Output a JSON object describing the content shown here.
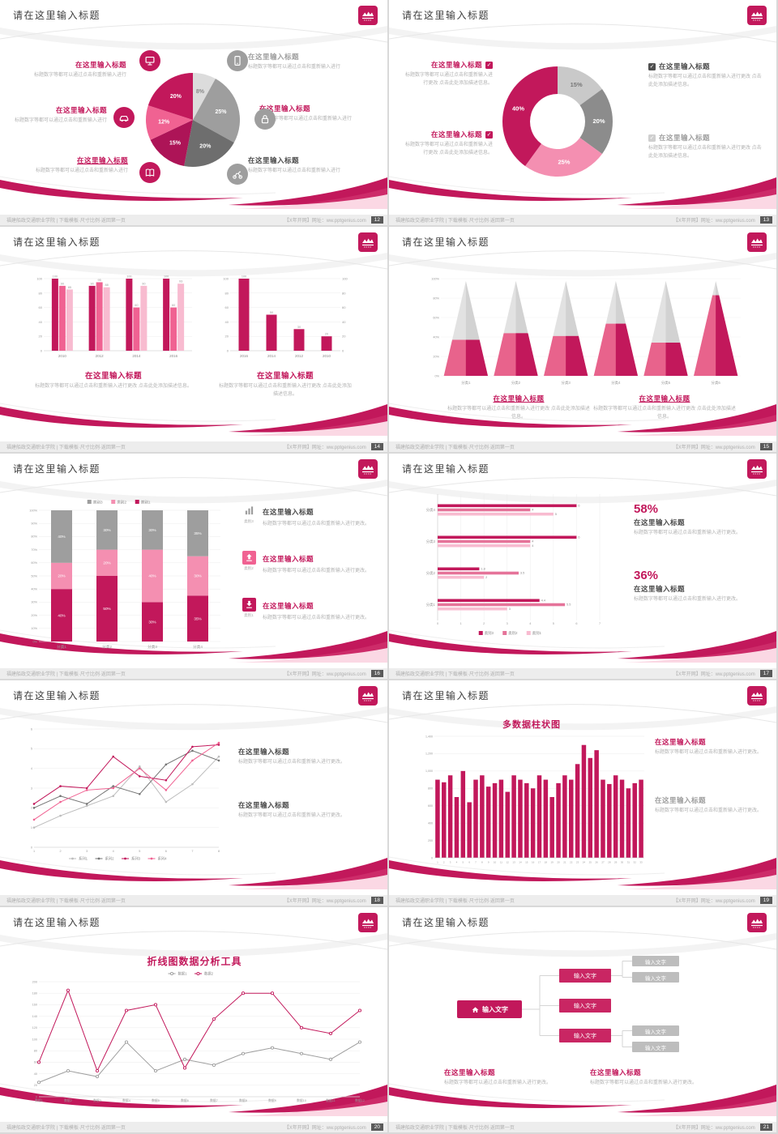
{
  "common": {
    "slide_title": "请在这里输入标题",
    "ph_title": "在这里输入标题",
    "body_short": "标题数字等都可以通过点击和重新输入进行",
    "body_med": "标题数字等都可以通过点击和重新输入进行更改。",
    "body_long": "标题数字等都可以通过点击和重新输入进行更改 点击此处添加描述信息。",
    "footer_left": "福建船政交通职业学院 | 下载模板·尺寸比例·返回第一页",
    "footer_right": "【X年开网】网址：ww.pptgenius.com",
    "colors": {
      "crimson": "#C2185B",
      "crimson_dark": "#AD1457",
      "pink": "#F06292",
      "pink_light": "#F8BBD0",
      "gray_dark": "#757575",
      "gray": "#9E9E9E",
      "gray_light": "#DADADA"
    }
  },
  "slides": [
    {
      "page": "12",
      "icons": [
        "monitor-icon",
        "smartphone-icon",
        "car-icon",
        "lock-icon",
        "book-icon",
        "scooter-icon"
      ],
      "pie": {
        "type": "pie",
        "slices": [
          {
            "label": "8%",
            "value": 8,
            "color": "#DCDCDC",
            "text": "#8a8a8a"
          },
          {
            "label": "25%",
            "value": 25,
            "color": "#9E9E9E"
          },
          {
            "label": "20%",
            "value": 20,
            "color": "#6E6E6E"
          },
          {
            "label": "15%",
            "value": 15,
            "color": "#AD1457"
          },
          {
            "label": "12%",
            "value": 12,
            "color": "#F06292"
          },
          {
            "label": "20%",
            "value": 20,
            "color": "#C2185B"
          }
        ]
      }
    },
    {
      "page": "13",
      "donut": {
        "type": "pie",
        "slices": [
          {
            "label": "15%",
            "value": 15,
            "color": "#C9C9C9",
            "text": "#777777"
          },
          {
            "label": "20%",
            "value": 20,
            "color": "#8C8C8C"
          },
          {
            "label": "25%",
            "value": 25,
            "color": "#F48FB1"
          },
          {
            "label": "40%",
            "value": 40,
            "color": "#C2185B"
          }
        ]
      }
    },
    {
      "page": "14",
      "chart_left": {
        "type": "bar",
        "groups": [
          {
            "label": "2010",
            "values": [
              100,
              90,
              85
            ]
          },
          {
            "label": "2012",
            "values": [
              90,
              95,
              88
            ]
          },
          {
            "label": "2014",
            "values": [
              100,
              60,
              90
            ]
          },
          {
            "label": "2016",
            "values": [
              100,
              60,
              93
            ]
          }
        ],
        "colors": [
          "#C2185B",
          "#F06292",
          "#F8BBD0"
        ],
        "ymax": 100,
        "yticks": [
          "0",
          "20",
          "40",
          "60",
          "80",
          "100"
        ],
        "axis": "left"
      },
      "chart_right": {
        "type": "bar",
        "groups": [
          {
            "label": "2016",
            "values": [
              100
            ]
          },
          {
            "label": "2014",
            "values": [
              50
            ]
          },
          {
            "label": "2012",
            "values": [
              30
            ]
          },
          {
            "label": "2010",
            "values": [
              20
            ]
          }
        ],
        "colors": [
          "#C2185B"
        ],
        "bw": 13,
        "ymax": 100,
        "yticks": [
          "0",
          "20",
          "40",
          "60",
          "80",
          "100"
        ],
        "axis": "both"
      }
    },
    {
      "page": "15",
      "pyramid": {
        "type": "pyramid",
        "cats": [
          "分类1",
          "分类2",
          "分类3",
          "分类4",
          "分类5",
          "分类6"
        ],
        "pct": [
          38,
          45,
          42,
          55,
          35,
          85
        ],
        "yticks": [
          "0%",
          "20%",
          "40%",
          "60%",
          "80%",
          "100%"
        ]
      }
    },
    {
      "page": "16",
      "stacked": {
        "type": "stacked-bar",
        "legend": [
          {
            "label": "类别3",
            "color": "#9E9E9E"
          },
          {
            "label": "类别2",
            "color": "#F48FB1"
          },
          {
            "label": "类别1",
            "color": "#C2185B"
          }
        ],
        "series_colors": [
          "#C2185B",
          "#F48FB1",
          "#9E9E9E"
        ],
        "cats": [
          "分类1",
          "分类2",
          "分类3",
          "分类4"
        ],
        "rows": [
          [
            40,
            20,
            40
          ],
          [
            50,
            20,
            30
          ],
          [
            30,
            40,
            30
          ],
          [
            35,
            30,
            35
          ]
        ],
        "ymax": 100,
        "yticks": [
          "0%",
          "10%",
          "20%",
          "30%",
          "40%",
          "50%",
          "60%",
          "70%",
          "80%",
          "90%",
          "100%"
        ]
      },
      "list": [
        {
          "icon": "bar-chart-icon",
          "caption": "类别3"
        },
        {
          "icon": "upload-icon",
          "caption": "类别2"
        },
        {
          "icon": "download-icon",
          "caption": "类别1"
        }
      ]
    },
    {
      "page": "17",
      "hbar": {
        "type": "horizontal-bar",
        "groups": [
          {
            "label": "分类4",
            "values": [
              6,
              4,
              5
            ]
          },
          {
            "label": "分类3",
            "values": [
              6,
              4,
              4
            ]
          },
          {
            "label": "分类2",
            "values": [
              1.8,
              3.5,
              2
            ]
          },
          {
            "label": "分类1",
            "values": [
              4.4,
              5.5,
              3
            ]
          }
        ],
        "colors": [
          "#C2185B",
          "#E57399",
          "#F8BBD0"
        ],
        "xmax": 7,
        "xticks": [
          "0",
          "1",
          "2",
          "3",
          "4",
          "5",
          "6",
          "7"
        ],
        "legend": [
          {
            "label": "类别3",
            "color": "#C2185B"
          },
          {
            "label": "类别2",
            "color": "#E57399"
          },
          {
            "label": "类别1",
            "color": "#F8BBD0"
          }
        ]
      },
      "stats": [
        {
          "pct": "58%"
        },
        {
          "pct": "36%"
        }
      ]
    },
    {
      "page": "18",
      "line": {
        "type": "line",
        "x": [
          "1",
          "2",
          "3",
          "4",
          "5",
          "6",
          "7",
          "8"
        ],
        "ymax": 6,
        "yticks": [
          "0",
          "1",
          "2",
          "3",
          "4",
          "5",
          "6"
        ],
        "marker": "filled",
        "legend_pos": "bottom",
        "series": [
          {
            "name": "系列1",
            "color": "#BDBDBD",
            "values": [
              1,
              1.6,
              2.1,
              2.6,
              4.1,
              2.3,
              3.2,
              4.6
            ]
          },
          {
            "name": "系列2",
            "color": "#757575",
            "values": [
              2,
              2.6,
              2.2,
              3.1,
              2.7,
              4.2,
              4.9,
              4.4
            ]
          },
          {
            "name": "系列3",
            "color": "#C2185B",
            "values": [
              2.2,
              3.1,
              3,
              4.6,
              3.6,
              3.4,
              5.1,
              5.2
            ]
          },
          {
            "name": "系列4",
            "color": "#F06292",
            "values": [
              1.4,
              2.3,
              2.9,
              3,
              4,
              2.9,
              4.4,
              5.3
            ]
          }
        ]
      }
    },
    {
      "page": "19",
      "title": "多数据柱状图",
      "columns": {
        "type": "bar",
        "values": [
          900,
          870,
          950,
          700,
          1000,
          640,
          900,
          950,
          820,
          860,
          900,
          760,
          950,
          900,
          860,
          800,
          950,
          900,
          700,
          860,
          950,
          900,
          1080,
          1300,
          1150,
          1240,
          900,
          850,
          950,
          900,
          800,
          860,
          900
        ],
        "ymax": 1400,
        "yticks": [
          "0",
          "200",
          "400",
          "600",
          "800",
          "1,000",
          "1,200",
          "1,400"
        ],
        "xlabels": [
          "1",
          "2",
          "3",
          "4",
          "5",
          "6",
          "7",
          "8",
          "9",
          "10",
          "11",
          "12",
          "13",
          "14",
          "15",
          "16",
          "17",
          "18",
          "19",
          "20",
          "21",
          "22",
          "23",
          "24",
          "25",
          "26",
          "27",
          "28",
          "29",
          "30",
          "31",
          "32",
          "33"
        ]
      }
    },
    {
      "page": "20",
      "title": "折线图数据分析工具",
      "line": {
        "type": "line",
        "x": [
          "数据1",
          "数据2",
          "数据3",
          "数据4",
          "数据5",
          "数据6",
          "数据7",
          "数据8",
          "数据9",
          "数据10",
          "数据11",
          "数据12"
        ],
        "ymax": 200,
        "yticks": [
          "0",
          "20",
          "40",
          "60",
          "80",
          "100",
          "120",
          "140",
          "160",
          "180",
          "200"
        ],
        "marker": "open",
        "legend_pos": "top",
        "series": [
          {
            "name": "数据1",
            "color": "#9E9E9E",
            "values": [
              25,
              45,
              35,
              95,
              45,
              65,
              55,
              75,
              85,
              75,
              65,
              95
            ]
          },
          {
            "name": "数据2",
            "color": "#C2185B",
            "values": [
              60,
              185,
              45,
              150,
              160,
              50,
              135,
              180,
              180,
              120,
              110,
              150
            ]
          }
        ]
      }
    },
    {
      "page": "21",
      "diagram": {
        "root": "输入文字",
        "mid": [
          "输入文字",
          "输入文字",
          "输入文字"
        ],
        "leaf": [
          "输入文字",
          "输入文字",
          "输入文字",
          "输入文字"
        ]
      }
    }
  ]
}
